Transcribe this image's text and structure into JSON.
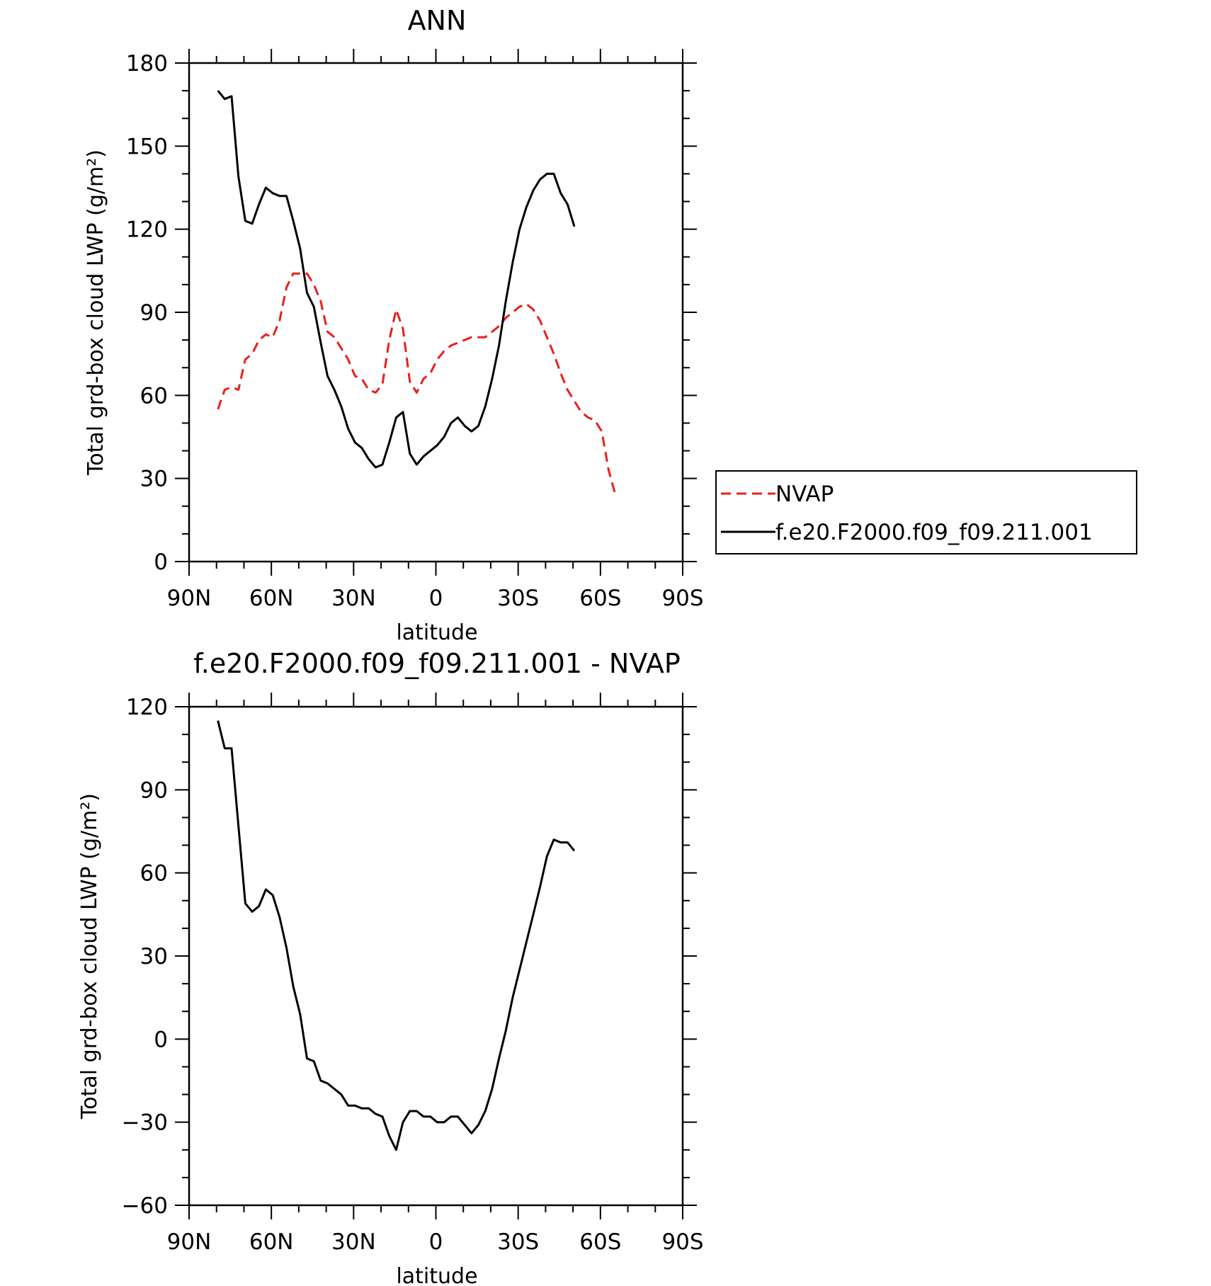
{
  "chart_data": [
    {
      "type": "line",
      "title": "ANN",
      "xlabel": "latitude",
      "ylabel": "Total grd-box cloud LWP (g/m²)",
      "xlim": [
        90,
        -90
      ],
      "ylim": [
        0,
        180
      ],
      "xticks": [
        90,
        60,
        30,
        0,
        -30,
        -60,
        -90
      ],
      "xticklabels": [
        "90N",
        "60N",
        "30N",
        "0",
        "30S",
        "60S",
        "90S"
      ],
      "yticks": [
        0,
        30,
        60,
        90,
        120,
        150,
        180
      ],
      "yticklabels": [
        "0",
        "30",
        "60",
        "90",
        "120",
        "150",
        "180"
      ],
      "legend": {
        "position": "right",
        "entries": [
          "NVAP",
          "f.e20.F2000.f09_f09.211.001"
        ]
      },
      "series": [
        {
          "name": "NVAP",
          "color": "#e8201e",
          "dash": "dashed",
          "x": [
            79.5,
            77,
            74.5,
            72,
            69.5,
            67,
            64.5,
            62,
            59.5,
            57,
            54.5,
            52,
            49.5,
            47,
            44.5,
            42,
            39.5,
            37,
            34.5,
            32,
            29.5,
            27,
            24.5,
            22,
            19.5,
            17,
            14.5,
            12,
            9.5,
            7,
            4.5,
            2,
            -0.5,
            -3,
            -5.5,
            -8,
            -10.5,
            -13,
            -15.5,
            -18,
            -20.5,
            -23,
            -25.5,
            -28,
            -30.5,
            -33,
            -35.5,
            -38,
            -40.5,
            -43,
            -45.5,
            -48,
            -50.5,
            -53,
            -55.5,
            -58,
            -60.5,
            -63,
            -65.5,
            -68,
            -70.5,
            -73,
            -75.5,
            -77.5
          ],
          "y": [
            55,
            62,
            63,
            62,
            73,
            75,
            80,
            82,
            81,
            87,
            99,
            104,
            104,
            104,
            100,
            94,
            83,
            81,
            77,
            73,
            67,
            66,
            62,
            61,
            64,
            80,
            91,
            84,
            65,
            61,
            66,
            68,
            73,
            76,
            78,
            79,
            80,
            81,
            81,
            81,
            83,
            85,
            88,
            90,
            92,
            93,
            91,
            87,
            81,
            75,
            68,
            62,
            58,
            54,
            52,
            51,
            47,
            33,
            24,
            null,
            null,
            null,
            null,
            null
          ]
        },
        {
          "name": "f.e20.F2000.f09_f09.211.001",
          "color": "#000000",
          "dash": "solid",
          "x": [
            79.5,
            77,
            74.5,
            72,
            69.5,
            67,
            64.5,
            62,
            59.5,
            57,
            54.5,
            52,
            49.5,
            47,
            44.5,
            42,
            39.5,
            37,
            34.5,
            32,
            29.5,
            27,
            24.5,
            22,
            19.5,
            17,
            14.5,
            12,
            9.5,
            7,
            4.5,
            2,
            -0.5,
            -3,
            -5.5,
            -8,
            -10.5,
            -13,
            -15.5,
            -18,
            -20.5,
            -23,
            -25.5,
            -28,
            -30.5,
            -33,
            -35.5,
            -38,
            -40.5,
            -43,
            -45.5,
            -48,
            -50.5,
            -53,
            -55.5,
            -58,
            -60.5,
            -63,
            -65.5
          ],
          "y": [
            170,
            167,
            168,
            139,
            123,
            122,
            129,
            135,
            133,
            132,
            132,
            123,
            113,
            97,
            92,
            79,
            67,
            62,
            56,
            48,
            43,
            41,
            37,
            34,
            35,
            43,
            52,
            54,
            39,
            35,
            38,
            40,
            42,
            45,
            50,
            52,
            49,
            47,
            49,
            56,
            66,
            78,
            94,
            108,
            120,
            128,
            134,
            138,
            140,
            140,
            133,
            129,
            121,
            null,
            null,
            null,
            null,
            null,
            null
          ]
        }
      ]
    },
    {
      "type": "line",
      "title": "f.e20.F2000.f09_f09.211.001 - NVAP",
      "xlabel": "latitude",
      "ylabel": "Total grd-box cloud LWP (g/m²)",
      "xlim": [
        90,
        -90
      ],
      "ylim": [
        -60,
        120
      ],
      "xticks": [
        90,
        60,
        30,
        0,
        -30,
        -60,
        -90
      ],
      "xticklabels": [
        "90N",
        "60N",
        "30N",
        "0",
        "30S",
        "60S",
        "90S"
      ],
      "yticks": [
        -60,
        -30,
        0,
        30,
        60,
        90,
        120
      ],
      "yticklabels": [
        "−60",
        "−30",
        "0",
        "30",
        "60",
        "90",
        "120"
      ],
      "series": [
        {
          "color": "#000000",
          "dash": "solid",
          "x": [
            79.5,
            77,
            74.5,
            72,
            69.5,
            67,
            64.5,
            62,
            59.5,
            57,
            54.5,
            52,
            49.5,
            47,
            44.5,
            42,
            39.5,
            37,
            34.5,
            32,
            29.5,
            27,
            24.5,
            22,
            19.5,
            17,
            14.5,
            12,
            9.5,
            7,
            4.5,
            2,
            -0.5,
            -3,
            -5.5,
            -8,
            -10.5,
            -13,
            -15.5,
            -18,
            -20.5,
            -23,
            -25.5,
            -28,
            -30.5,
            -33,
            -35.5,
            -38,
            -40.5,
            -43,
            -45.5,
            -48,
            -50.5,
            -53,
            -55.5,
            -58,
            -60.5,
            -63,
            -65.5
          ],
          "y": [
            115,
            105,
            105,
            77,
            49,
            46,
            48,
            54,
            52,
            44,
            33,
            19,
            9,
            -7,
            -8,
            -15,
            -16,
            -18,
            -20,
            -24,
            -24,
            -25,
            -25,
            -27,
            -28,
            -35,
            -40,
            -30,
            -26,
            -26,
            -28,
            -28,
            -30,
            -30,
            -28,
            -28,
            -31,
            -34,
            -31,
            -26,
            -18,
            -7,
            3,
            15,
            25,
            35,
            45,
            55,
            66,
            72,
            71,
            71,
            68,
            null,
            null,
            null,
            null,
            null,
            null
          ]
        }
      ]
    }
  ]
}
